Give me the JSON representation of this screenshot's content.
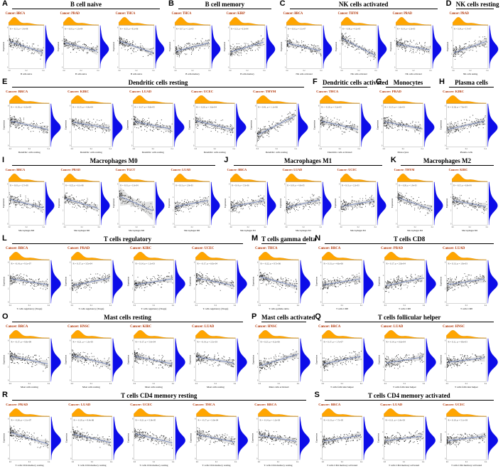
{
  "colors": {
    "top_density": "#FFA500",
    "right_density": "#0D0DE8",
    "trend_line": "#7B8CBE",
    "ci_band": "#C8C8C8",
    "point": "#1A1A1A",
    "cancer_label": "#B03000",
    "stats_text": "#333333",
    "axis_text": "#444444"
  },
  "axes": {
    "x_ticks": [
      "0.0",
      "0.2",
      "0.4"
    ],
    "y_ticks": [
      "0",
      "2",
      "4",
      "6"
    ],
    "ylabel": "Expression"
  },
  "chart_data": {
    "type": "scatter",
    "layout": "19 lettered panels (A-S) in 6 rows; each subplot is a correlation scatter plot with orange top marginal density, blue right marginal density, blue linear trend line with gray confidence band",
    "rows": [
      {
        "panels": [
          {
            "id": "A",
            "title": "B cell naive",
            "xlabel": "B cells naive",
            "subplots": [
              {
                "cancer_label": "Cancer: BRCA",
                "stats": "R = -0.21, p = 1.4e-08",
                "slope": -0.28
              },
              {
                "cancer_label": "Cancer: PRAD",
                "stats": "R = -0.18, p = 2.3e-04",
                "slope": -0.22
              },
              {
                "cancer_label": "Cancer: THCA",
                "stats": "R = -0.25, p = 8.1e-06",
                "slope": -0.3
              }
            ]
          },
          {
            "id": "B",
            "title": "B cell memory",
            "xlabel": "B cells memory",
            "subplots": [
              {
                "cancer_label": "Cancer: THCA",
                "stats": "R = 0.17, p = 1.2e-03",
                "slope": 0.22
              },
              {
                "cancer_label": "Cancer: KIRP",
                "stats": "R = 0.21, p = 6.5e-04",
                "slope": 0.26
              }
            ]
          },
          {
            "id": "C",
            "title": "NK cells activated",
            "xlabel": "NK cells activated",
            "subplots": [
              {
                "cancer_label": "Cancer: BRCA",
                "stats": "R = -0.16, p = 3.1e-07",
                "slope": -0.2
              },
              {
                "cancer_label": "Cancer: THYM",
                "stats": "R = -0.38, p = 4.2e-05",
                "slope": -0.45
              },
              {
                "cancer_label": "Cancer: PRAD",
                "stats": "R = -0.14, p = 2.0e-03",
                "slope": -0.16
              }
            ]
          },
          {
            "id": "D",
            "title": "NK cells resting",
            "xlabel": "NK cells resting",
            "subplots": [
              {
                "cancer_label": "Cancer: PRAD",
                "stats": "R = 0.24, p = 5.7e-07",
                "slope": 0.3
              }
            ]
          }
        ]
      },
      {
        "panels": [
          {
            "id": "E",
            "title": "Dendritic cells resting",
            "xlabel": "Dendritic cells resting",
            "subplots": [
              {
                "cancer_label": "Cancer: BRCA",
                "stats": "R = -0.19, p = 6.3e-09",
                "slope": -0.22
              },
              {
                "cancer_label": "Cancer: KIRC",
                "stats": "R = -0.15, p = 4.4e-04",
                "slope": -0.16
              },
              {
                "cancer_label": "Cancer: LUAD",
                "stats": "R = -0.17, p = 9.8e-05",
                "slope": -0.2
              },
              {
                "cancer_label": "Cancer: UCEC",
                "stats": "R = -0.20, p = 3.6e-04",
                "slope": -0.24
              },
              {
                "cancer_label": "Cancer: THYM",
                "stats": "R = 0.41, p = 1.1e-06",
                "slope": 0.5
              }
            ]
          },
          {
            "id": "F",
            "title": "Dendritic cells activated",
            "xlabel": "Dendritic cells activated",
            "subplots": [
              {
                "cancer_label": "Cancer: THCA",
                "stats": "R = -0.19, p = 5.2e-05",
                "slope": -0.22
              }
            ]
          },
          {
            "id": "G",
            "title": "Monocytes",
            "xlabel": "Monocytes",
            "subplots": [
              {
                "cancer_label": "Cancer: PRAD",
                "stats": "R = -0.15, p = 1.6e-03",
                "slope": -0.18
              }
            ]
          },
          {
            "id": "H",
            "title": "Plasma cells",
            "xlabel": "Plasma cells",
            "subplots": [
              {
                "cancer_label": "Cancer: KIRC",
                "stats": "R = 0.18, p = 7.9e-05",
                "slope": 0.22
              }
            ]
          }
        ]
      },
      {
        "panels": [
          {
            "id": "I",
            "title": "Macrophages M0",
            "xlabel": "Macrophages M0",
            "subplots": [
              {
                "cancer_label": "Cancer: BRCA",
                "stats": "R = -0.18, p = 2.7e-08",
                "slope": -0.22
              },
              {
                "cancer_label": "Cancer: PRAD",
                "stats": "R = -0.22, p = 6.1e-06",
                "slope": -0.26
              },
              {
                "cancer_label": "Cancer: TGCT",
                "stats": "R = -0.31, p = 3.3e-04",
                "slope": -0.38,
                "band": 2.4
              },
              {
                "cancer_label": "Cancer: LUAD",
                "stats": "R = 0.13, p = 2.9e-03",
                "slope": 0.16
              }
            ]
          },
          {
            "id": "J",
            "title": "Macrophages M1",
            "xlabel": "Macrophages M1",
            "subplots": [
              {
                "cancer_label": "Cancer: BRCA",
                "stats": "R = 0.14, p = 5.5e-06",
                "slope": 0.16
              },
              {
                "cancer_label": "Cancer: LUAD",
                "stats": "R = 0.18, p = 4.0e-05",
                "slope": 0.2
              },
              {
                "cancer_label": "Cancer: UCEC",
                "stats": "R = 0.13, p = 2.2e-03",
                "slope": 0.15
              }
            ]
          },
          {
            "id": "K",
            "title": "Macrophages M2",
            "xlabel": "Macrophages M2",
            "subplots": [
              {
                "cancer_label": "Cancer: THYM",
                "stats": "R = -0.26, p = 1.9e-03",
                "slope": -0.3
              },
              {
                "cancer_label": "Cancer: KIRC",
                "stats": "R = -0.15, p = 6.8e-04",
                "slope": -0.16
              }
            ]
          }
        ]
      },
      {
        "panels": [
          {
            "id": "L",
            "title": "T cells regulatory",
            "xlabel": "T cells regulatory (Tregs)",
            "subplots": [
              {
                "cancer_label": "Cancer: BRCA",
                "stats": "R = -0.14, p = 9.1e-07",
                "slope": -0.16
              },
              {
                "cancer_label": "Cancer: PRAD",
                "stats": "R = 0.17, p = 3.5e-04",
                "slope": 0.2
              },
              {
                "cancer_label": "Cancer: KIRC",
                "stats": "R = 0.14, p = 1.1e-03",
                "slope": 0.16
              },
              {
                "cancer_label": "Cancer: UCEC",
                "stats": "R = -0.17, p = 6.0e-04",
                "slope": -0.2
              }
            ]
          },
          {
            "id": "M",
            "title": "T cells gamma delta",
            "xlabel": "T cells gamma delta",
            "subplots": [
              {
                "cancer_label": "Cancer: THCA",
                "stats": "R = -0.22, p = 8.7e-06",
                "slope": -0.26
              }
            ]
          },
          {
            "id": "N",
            "title": "T cells CD8",
            "xlabel": "T cells CD8",
            "subplots": [
              {
                "cancer_label": "Cancer: BRCA",
                "stats": "R = 0.13, p = 4.6e-06",
                "slope": 0.16
              },
              {
                "cancer_label": "Cancer: PRAD",
                "stats": "R = 0.17, p = 2.8e-04",
                "slope": 0.2
              },
              {
                "cancer_label": "Cancer: LUAD",
                "stats": "R = 0.13, p = 1.9e-03",
                "slope": 0.15
              }
            ]
          }
        ]
      },
      {
        "panels": [
          {
            "id": "O",
            "title": "Mast cells resting",
            "xlabel": "Mast cells resting",
            "subplots": [
              {
                "cancer_label": "Cancer: BRCA",
                "stats": "R = -0.17, p = 8.8e-08",
                "slope": -0.2
              },
              {
                "cancer_label": "Cancer: HNSC",
                "stats": "R = -0.21, p = 1.3e-05",
                "slope": -0.24
              },
              {
                "cancer_label": "Cancer: KIRC",
                "stats": "R = -0.17, p = 5.4e-04",
                "slope": -0.2
              },
              {
                "cancer_label": "Cancer: LUAD",
                "stats": "R = -0.14, p = 2.5e-03",
                "slope": -0.16
              }
            ]
          },
          {
            "id": "P",
            "title": "Mast cells activated",
            "xlabel": "Mast cells activated",
            "subplots": [
              {
                "cancer_label": "Cancer: HNSC",
                "stats": "R = 0.25, p = 6.2e-06",
                "slope": 0.3
              }
            ]
          },
          {
            "id": "Q",
            "title": "T cells follicular helper",
            "xlabel": "T cells follicular helper",
            "subplots": [
              {
                "cancer_label": "Cancer: BRCA",
                "stats": "R = 0.17, p = 1.7e-07",
                "slope": 0.2
              },
              {
                "cancer_label": "Cancer: LUAD",
                "stats": "R = 0.14, p = 6.6e-04",
                "slope": 0.16
              },
              {
                "cancer_label": "Cancer: HNSC",
                "stats": "R = 0.11, p = 4.8e-03",
                "slope": 0.12
              }
            ]
          }
        ]
      },
      {
        "panels": [
          {
            "id": "R",
            "title": "T cells CD4 memory resting",
            "xlabel": "T cells CD4 memory resting",
            "subplots": [
              {
                "cancer_label": "Cancer: PRAD",
                "stats": "R = -0.26, p = 2.1e-07",
                "slope": -0.3
              },
              {
                "cancer_label": "Cancer: LUAD",
                "stats": "R = -0.19, p = 8.4e-06",
                "slope": -0.22
              },
              {
                "cancer_label": "Cancer: UCEC",
                "stats": "R = -0.21, p = 5.9e-05",
                "slope": -0.24
              },
              {
                "cancer_label": "Cancer: THCA",
                "stats": "R = -0.17, p = 3.0e-04",
                "slope": -0.2
              },
              {
                "cancer_label": "Cancer: BRCA",
                "stats": "R = -0.14, p = 1.2e-03",
                "slope": -0.16
              }
            ]
          },
          {
            "id": "S",
            "title": "T cells CD4 memory activated",
            "xlabel": "T cells CD4 memory activated",
            "subplots": [
              {
                "cancer_label": "Cancer: BRCA",
                "stats": "R = 0.13, p = 7.7e-05",
                "slope": 0.15
              },
              {
                "cancer_label": "Cancer: LUAD",
                "stats": "R = 0.11, p = 2.4e-03",
                "slope": 0.12
              },
              {
                "cancer_label": "Cancer: UCEC",
                "stats": "R = 0.10, p = 5.1e-03",
                "slope": 0.12
              }
            ]
          }
        ]
      }
    ]
  }
}
